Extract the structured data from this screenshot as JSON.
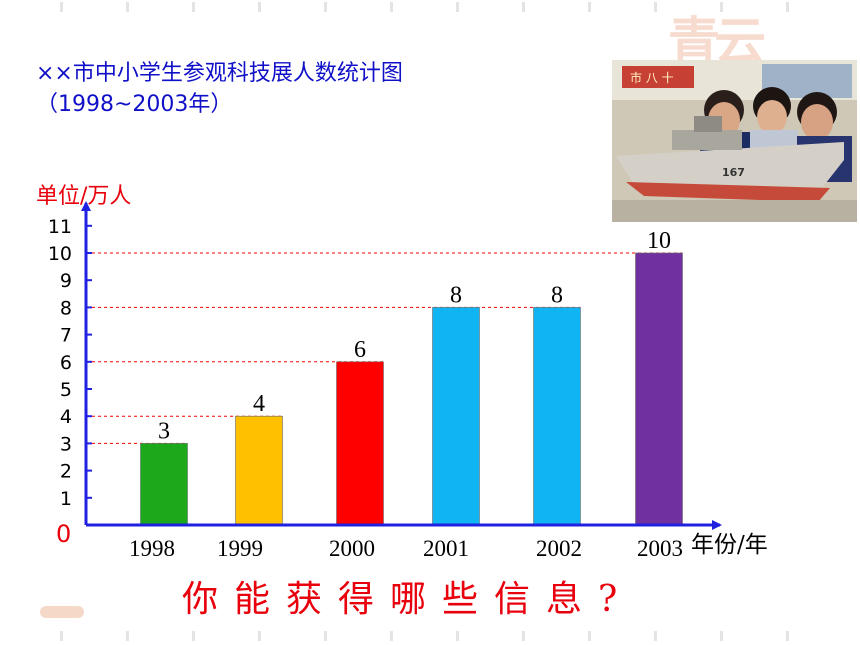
{
  "title": {
    "line1": "××市中小学生参观科技展人数统计图",
    "line2": "（1998~2003年）"
  },
  "question": "你能获得哪些信息?",
  "photo": {
    "ship_number": "167",
    "banner_text": "市 八 十"
  },
  "colors": {
    "title": "#1010c8",
    "accent_red": "#e8000c",
    "axis": "#2020e0",
    "bars": [
      "#1ba81b",
      "#ffc000",
      "#ff0000",
      "#10b4f2",
      "#10b4f2",
      "#7030a0"
    ]
  },
  "chart_data": {
    "type": "bar",
    "categories": [
      "1998",
      "1999",
      "2000",
      "2001",
      "2002",
      "2003"
    ],
    "values": [
      3,
      4,
      6,
      8,
      8,
      10
    ],
    "data_labels": [
      "3",
      "4",
      "6",
      "8",
      "8",
      "10"
    ],
    "ylabel": "单位/万人",
    "xlabel": "年份/年",
    "origin_label": "0",
    "y_ticks": [
      "1",
      "2",
      "3",
      "4",
      "5",
      "6",
      "7",
      "8",
      "9",
      "10",
      "11"
    ],
    "ylim": [
      0,
      11
    ],
    "grid": false,
    "reference_lines": [
      3,
      4,
      6,
      8,
      10
    ]
  }
}
